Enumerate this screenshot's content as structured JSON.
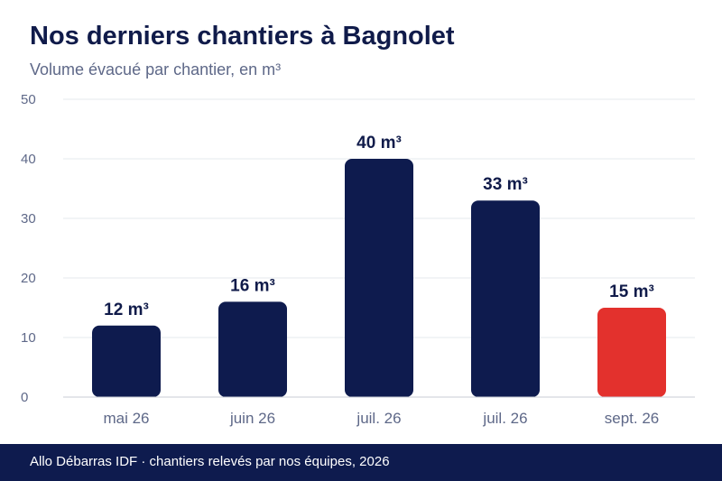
{
  "header": {
    "title": "Nos derniers chantiers à Bagnolet",
    "subtitle": "Volume évacué par chantier, en m³"
  },
  "footer": {
    "source": "Allo Débarras IDF · chantiers relevés par nos équipes, 2026"
  },
  "chart_data": {
    "type": "bar",
    "title": "Nos derniers chantiers à Bagnolet",
    "subtitle": "Volume évacué par chantier, en m³",
    "xlabel": "",
    "ylabel": "",
    "categories": [
      "mai 26",
      "juin 26",
      "juil. 26",
      "juil. 26",
      "sept. 26"
    ],
    "values": [
      12,
      16,
      40,
      33,
      15
    ],
    "value_labels": [
      "12 m³",
      "16 m³",
      "40 m³",
      "33 m³",
      "15 m³"
    ],
    "ylim": [
      0,
      50
    ],
    "yticks": [
      0,
      10,
      20,
      30,
      40,
      50
    ],
    "grid": true,
    "legend": "none",
    "colors": {
      "bar": "#0e1b4e",
      "highlight": "#e3312d",
      "label": "#101b4a",
      "tick": "#5e6888",
      "grid": "#e6e8ee",
      "axis": "#c9ccd6"
    },
    "highlight_index": 4
  }
}
